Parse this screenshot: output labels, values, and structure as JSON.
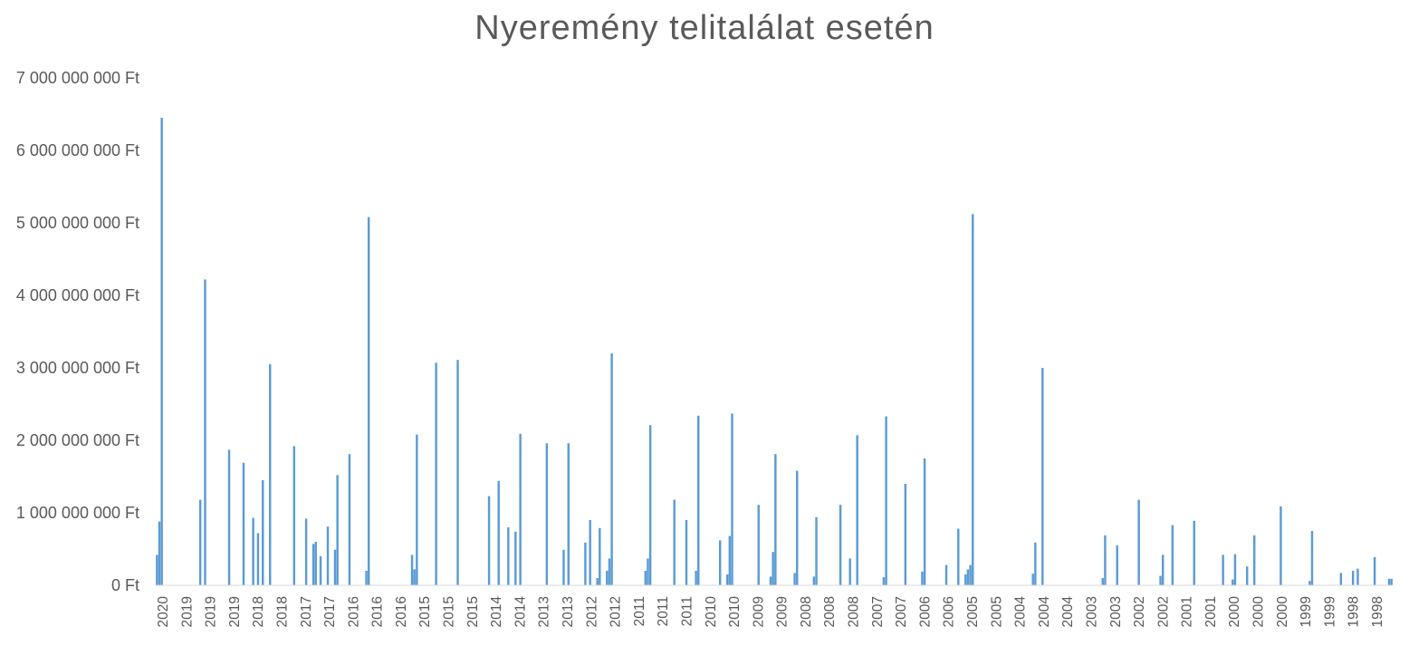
{
  "chart_data": {
    "type": "bar",
    "title": "Nyeremény telitalálat esetén",
    "xlabel": "",
    "ylabel": "",
    "ylim": [
      0,
      7000000000
    ],
    "grid": false,
    "legend": "none",
    "bar_color": "#5b9bd5",
    "text_color": "#595959",
    "y_ticks": [
      0,
      1000000000,
      2000000000,
      3000000000,
      4000000000,
      5000000000,
      6000000000,
      7000000000
    ],
    "y_tick_labels": [
      "0 Ft",
      "1 000 000 000 Ft",
      "2 000 000 000 Ft",
      "3 000 000 000 Ft",
      "4 000 000 000 Ft",
      "5 000 000 000 Ft",
      "6 000 000 000 Ft",
      "7 000 000 000 Ft"
    ],
    "x_tick_labels": [
      "2020",
      "2019",
      "2019",
      "2019",
      "2018",
      "2018",
      "2017",
      "2017",
      "2016",
      "2016",
      "2016",
      "2015",
      "2015",
      "2015",
      "2014",
      "2014",
      "2013",
      "2013",
      "2012",
      "2012",
      "2011",
      "2011",
      "2011",
      "2010",
      "2010",
      "2009",
      "2009",
      "2008",
      "2008",
      "2008",
      "2007",
      "2007",
      "2006",
      "2006",
      "2005",
      "2005",
      "2004",
      "2004",
      "2004",
      "2003",
      "2003",
      "2002",
      "2002",
      "2001",
      "2001",
      "2000",
      "2000",
      "2000",
      "1999",
      "1999",
      "1998",
      "1998"
    ],
    "values": [
      420000000,
      880000000,
      6450000000,
      0,
      0,
      0,
      0,
      0,
      0,
      0,
      0,
      0,
      0,
      0,
      0,
      0,
      0,
      0,
      1180000000,
      0,
      4220000000,
      0,
      0,
      0,
      0,
      0,
      0,
      0,
      0,
      0,
      1870000000,
      0,
      0,
      0,
      0,
      0,
      1690000000,
      0,
      0,
      0,
      930000000,
      0,
      720000000,
      0,
      1450000000,
      0,
      0,
      3050000000,
      0,
      0,
      0,
      0,
      0,
      0,
      0,
      0,
      0,
      1920000000,
      0,
      0,
      0,
      0,
      920000000,
      0,
      0,
      570000000,
      600000000,
      0,
      400000000,
      0,
      0,
      810000000,
      0,
      0,
      490000000,
      1520000000,
      0,
      0,
      0,
      0,
      1810000000,
      0,
      0,
      0,
      0,
      0,
      0,
      200000000,
      5080000000,
      0,
      0,
      0,
      0,
      0,
      0,
      0,
      0,
      0,
      0,
      0,
      0,
      0,
      0,
      0,
      0,
      0,
      420000000,
      220000000,
      2080000000,
      0,
      0,
      0,
      0,
      0,
      0,
      0,
      3070000000,
      0,
      0,
      0,
      0,
      0,
      0,
      0,
      0,
      3110000000,
      0,
      0,
      0,
      0,
      0,
      0,
      0,
      0,
      0,
      0,
      0,
      0,
      1230000000,
      0,
      0,
      0,
      1440000000,
      0,
      0,
      0,
      800000000,
      0,
      0,
      740000000,
      0,
      2090000000,
      0,
      0,
      0,
      0,
      0,
      0,
      0,
      0,
      0,
      0,
      1960000000,
      0,
      0,
      0,
      0,
      0,
      0,
      490000000,
      0,
      1960000000,
      0,
      0,
      0,
      0,
      0,
      0,
      590000000,
      0,
      900000000,
      0,
      0,
      100000000,
      790000000,
      0,
      0,
      200000000,
      370000000,
      3200000000,
      0,
      0,
      0,
      0,
      0,
      0,
      0,
      0,
      0,
      0,
      0,
      0,
      0,
      200000000,
      370000000,
      2210000000,
      0,
      0,
      0,
      0,
      0,
      0,
      0,
      0,
      0,
      1180000000,
      0,
      0,
      0,
      0,
      900000000,
      0,
      0,
      0,
      200000000,
      2340000000,
      0,
      0,
      0,
      0,
      0,
      0,
      0,
      0,
      620000000,
      0,
      0,
      150000000,
      680000000,
      2370000000,
      0,
      0,
      0,
      0,
      0,
      0,
      0,
      0,
      0,
      0,
      1110000000,
      0,
      0,
      0,
      0,
      120000000,
      460000000,
      1810000000,
      0,
      0,
      0,
      0,
      0,
      0,
      0,
      170000000,
      1580000000,
      0,
      0,
      0,
      0,
      0,
      0,
      120000000,
      940000000,
      0,
      0,
      0,
      0,
      0,
      0,
      0,
      0,
      0,
      1110000000,
      0,
      0,
      0,
      370000000,
      0,
      0,
      2070000000,
      0,
      0,
      0,
      0,
      0,
      0,
      0,
      0,
      0,
      0,
      110000000,
      2330000000,
      0,
      0,
      0,
      0,
      0,
      0,
      0,
      1400000000,
      0,
      0,
      0,
      0,
      0,
      0,
      190000000,
      1750000000,
      0,
      0,
      0,
      0,
      0,
      0,
      0,
      0,
      280000000,
      0,
      0,
      0,
      0,
      780000000,
      0,
      0,
      150000000,
      220000000,
      280000000,
      5120000000,
      0,
      0,
      0,
      0,
      0,
      0,
      0,
      0,
      0,
      0,
      0,
      0,
      0,
      0,
      0,
      0,
      0,
      0,
      0,
      0,
      0,
      0,
      0,
      0,
      160000000,
      590000000,
      0,
      0,
      3000000000,
      0,
      0,
      0,
      0,
      0,
      0,
      0,
      0,
      0,
      0,
      0,
      0,
      0,
      0,
      0,
      0,
      0,
      0,
      0,
      0,
      0,
      0,
      0,
      0,
      100000000,
      690000000,
      0,
      0,
      0,
      0,
      550000000,
      0,
      0,
      0,
      0,
      0,
      0,
      0,
      0,
      1180000000,
      0,
      0,
      0,
      0,
      0,
      0,
      0,
      0,
      130000000,
      420000000,
      0,
      0,
      0,
      830000000,
      0,
      0,
      0,
      0,
      0,
      0,
      0,
      0,
      890000000,
      0,
      0,
      0,
      0,
      0,
      0,
      0,
      0,
      0,
      0,
      0,
      420000000,
      0,
      0,
      0,
      80000000,
      430000000,
      0,
      0,
      0,
      0,
      260000000,
      0,
      0,
      690000000,
      0,
      0,
      0,
      0,
      0,
      0,
      0,
      0,
      0,
      0,
      1090000000,
      0,
      0,
      0,
      0,
      0,
      0,
      0,
      0,
      0,
      0,
      0,
      60000000,
      750000000,
      0,
      0,
      0,
      0,
      0,
      0,
      0,
      0,
      0,
      0,
      0,
      170000000,
      0,
      0,
      0,
      0,
      200000000,
      0,
      230000000,
      0,
      0,
      0,
      0,
      0,
      0,
      390000000,
      0,
      0,
      0,
      0,
      0,
      90000000,
      90000000
    ]
  }
}
